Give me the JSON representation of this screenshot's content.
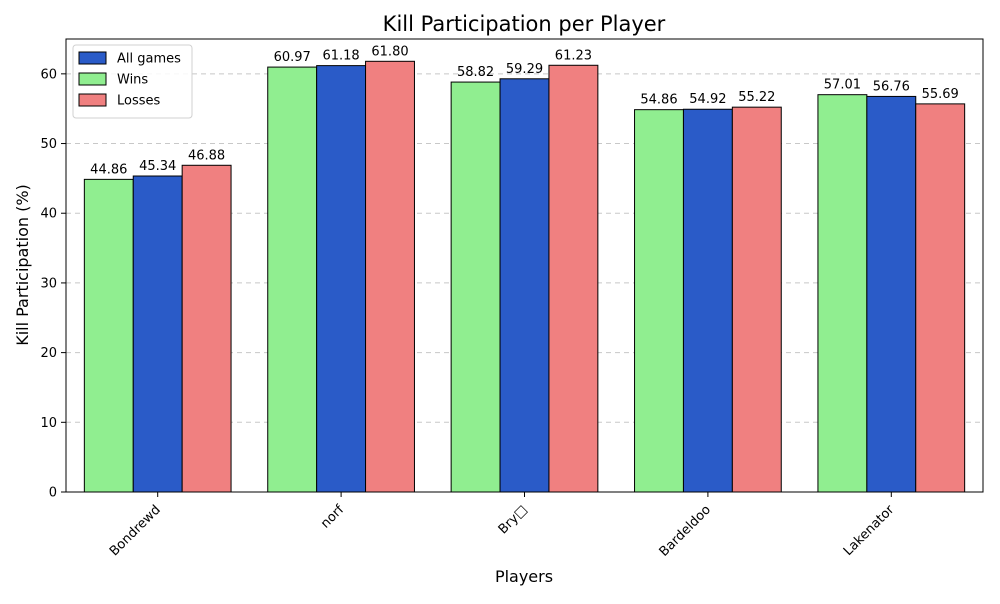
{
  "chart_data": {
    "type": "bar",
    "title": "Kill Participation per Player",
    "xlabel": "Players",
    "ylabel": "Kill Participation (%)",
    "categories": [
      "Bondrewd",
      "norf",
      "Bry□",
      "Bardeldoo",
      "Lakenator"
    ],
    "series": [
      {
        "name": "Wins",
        "color": "#90ee90",
        "values": [
          44.86,
          60.97,
          58.82,
          54.86,
          57.01
        ]
      },
      {
        "name": "All games",
        "color": "#2a5bc8",
        "values": [
          45.34,
          61.18,
          59.29,
          54.92,
          56.76
        ]
      },
      {
        "name": "Losses",
        "color": "#f08080",
        "values": [
          46.88,
          61.8,
          61.23,
          55.22,
          55.69
        ]
      }
    ],
    "legend_order": [
      "All games",
      "Wins",
      "Losses"
    ],
    "legend_position": "upper-left",
    "ylim": [
      0,
      65
    ],
    "yticks": [
      0,
      10,
      20,
      30,
      40,
      50,
      60
    ],
    "grid": "y-dashed"
  }
}
